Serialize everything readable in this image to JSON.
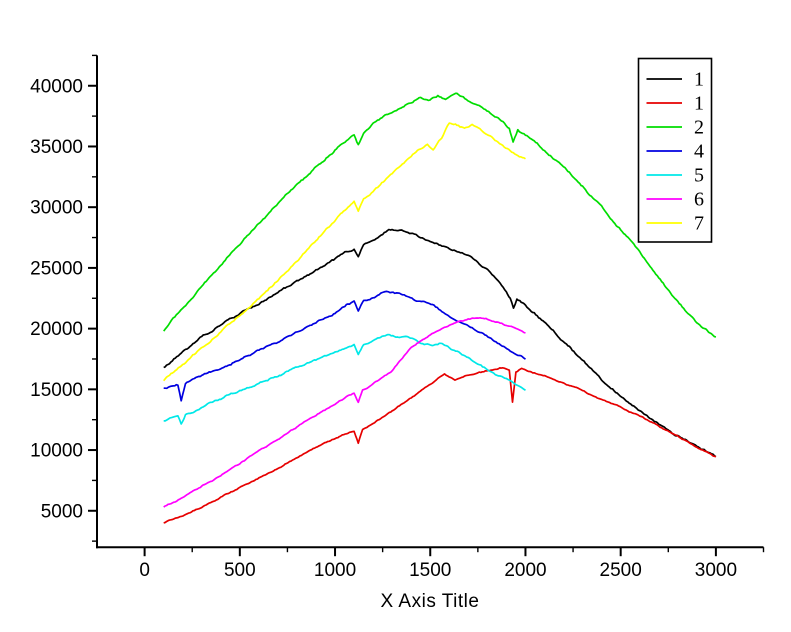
{
  "chart_data": {
    "type": "line",
    "title": "",
    "xlabel": "X Axis Title",
    "ylabel": "",
    "grid": false,
    "legend_position": "top-right",
    "xlim": [
      -250,
      3250
    ],
    "ylim": [
      2000,
      42500
    ],
    "x_ticks": [
      0,
      500,
      1000,
      1500,
      2000,
      2500,
      3000
    ],
    "y_ticks": [
      5000,
      10000,
      15000,
      20000,
      25000,
      30000,
      35000,
      40000
    ],
    "x_minor_step": 250,
    "y_minor_step": 2500,
    "axis_color": "#000000",
    "legend": {
      "labels": [
        "1",
        "1",
        "2",
        "4",
        "5",
        "6",
        "7"
      ],
      "border_color": "#000000",
      "background": "#ffffff"
    },
    "series": [
      {
        "name": "1",
        "color": "#000000",
        "noise": 150,
        "points": [
          [
            100,
            16800
          ],
          [
            200,
            18100
          ],
          [
            300,
            19300
          ],
          [
            400,
            20300
          ],
          [
            500,
            21300
          ],
          [
            600,
            22100
          ],
          [
            700,
            23000
          ],
          [
            800,
            23900
          ],
          [
            900,
            24800
          ],
          [
            1000,
            25700
          ],
          [
            1060,
            26300
          ],
          [
            1100,
            26600
          ],
          [
            1122,
            25900
          ],
          [
            1150,
            26800
          ],
          [
            1200,
            27300
          ],
          [
            1283,
            28200
          ],
          [
            1350,
            28100
          ],
          [
            1400,
            27900
          ],
          [
            1450,
            27500
          ],
          [
            1500,
            27200
          ],
          [
            1600,
            26500
          ],
          [
            1650,
            26300
          ],
          [
            1700,
            26000
          ],
          [
            1750,
            25500
          ],
          [
            1800,
            24900
          ],
          [
            1850,
            24000
          ],
          [
            1900,
            23000
          ],
          [
            1920,
            22500
          ],
          [
            1937,
            21700
          ],
          [
            1955,
            22400
          ],
          [
            2000,
            21900
          ],
          [
            2100,
            20500
          ],
          [
            2200,
            19000
          ],
          [
            2300,
            17400
          ],
          [
            2400,
            15800
          ],
          [
            2490,
            14560
          ],
          [
            2600,
            13200
          ],
          [
            2700,
            12200
          ],
          [
            2800,
            11200
          ],
          [
            2900,
            10300
          ],
          [
            3000,
            9450
          ]
        ]
      },
      {
        "name": "1",
        "color": "#e60000",
        "noise": 90,
        "points": [
          [
            100,
            4000
          ],
          [
            200,
            4600
          ],
          [
            300,
            5300
          ],
          [
            400,
            6100
          ],
          [
            500,
            6900
          ],
          [
            600,
            7700
          ],
          [
            700,
            8500
          ],
          [
            800,
            9400
          ],
          [
            900,
            10200
          ],
          [
            1000,
            11000
          ],
          [
            1060,
            11400
          ],
          [
            1100,
            11600
          ],
          [
            1122,
            10600
          ],
          [
            1145,
            11700
          ],
          [
            1200,
            12200
          ],
          [
            1300,
            13200
          ],
          [
            1400,
            14300
          ],
          [
            1480,
            15200
          ],
          [
            1540,
            15900
          ],
          [
            1575,
            16300
          ],
          [
            1600,
            16000
          ],
          [
            1630,
            15800
          ],
          [
            1680,
            16100
          ],
          [
            1750,
            16400
          ],
          [
            1820,
            16600
          ],
          [
            1880,
            16800
          ],
          [
            1915,
            16600
          ],
          [
            1932,
            14000
          ],
          [
            1950,
            16400
          ],
          [
            1980,
            16700
          ],
          [
            2000,
            16600
          ],
          [
            2100,
            16100
          ],
          [
            2200,
            15500
          ],
          [
            2300,
            14900
          ],
          [
            2400,
            14200
          ],
          [
            2490,
            13640
          ],
          [
            2600,
            12800
          ],
          [
            2700,
            12000
          ],
          [
            2800,
            11100
          ],
          [
            2900,
            10200
          ],
          [
            3000,
            9400
          ]
        ]
      },
      {
        "name": "2",
        "color": "#00dd00",
        "noise": 150,
        "points": [
          [
            100,
            19800
          ],
          [
            150,
            20800
          ],
          [
            200,
            21700
          ],
          [
            300,
            23500
          ],
          [
            400,
            25300
          ],
          [
            500,
            27000
          ],
          [
            600,
            28700
          ],
          [
            700,
            30300
          ],
          [
            800,
            31800
          ],
          [
            900,
            33300
          ],
          [
            1000,
            34700
          ],
          [
            1060,
            35500
          ],
          [
            1100,
            36000
          ],
          [
            1122,
            35200
          ],
          [
            1150,
            36200
          ],
          [
            1200,
            36900
          ],
          [
            1300,
            37900
          ],
          [
            1400,
            38600
          ],
          [
            1450,
            39000
          ],
          [
            1490,
            38700
          ],
          [
            1540,
            39200
          ],
          [
            1580,
            38900
          ],
          [
            1640,
            39300
          ],
          [
            1690,
            38900
          ],
          [
            1740,
            38500
          ],
          [
            1790,
            38100
          ],
          [
            1840,
            37500
          ],
          [
            1890,
            36900
          ],
          [
            1915,
            36500
          ],
          [
            1935,
            35300
          ],
          [
            1960,
            36300
          ],
          [
            2000,
            35900
          ],
          [
            2100,
            34700
          ],
          [
            2200,
            33300
          ],
          [
            2300,
            31700
          ],
          [
            2400,
            30000
          ],
          [
            2500,
            28200
          ],
          [
            2600,
            26300
          ],
          [
            2700,
            24200
          ],
          [
            2800,
            22200
          ],
          [
            2900,
            20500
          ],
          [
            3000,
            19300
          ]
        ]
      },
      {
        "name": "4",
        "color": "#0000e0",
        "noise": 140,
        "points": [
          [
            100,
            15100
          ],
          [
            150,
            15300
          ],
          [
            175,
            15400
          ],
          [
            192,
            14100
          ],
          [
            215,
            15500
          ],
          [
            300,
            16100
          ],
          [
            400,
            16800
          ],
          [
            500,
            17500
          ],
          [
            600,
            18200
          ],
          [
            700,
            18900
          ],
          [
            800,
            19700
          ],
          [
            900,
            20500
          ],
          [
            1000,
            21300
          ],
          [
            1060,
            22000
          ],
          [
            1100,
            22200
          ],
          [
            1122,
            21400
          ],
          [
            1150,
            22300
          ],
          [
            1200,
            22600
          ],
          [
            1272,
            23100
          ],
          [
            1330,
            22900
          ],
          [
            1380,
            22700
          ],
          [
            1420,
            22400
          ],
          [
            1470,
            22200
          ],
          [
            1520,
            21900
          ],
          [
            1570,
            21300
          ],
          [
            1620,
            20800
          ],
          [
            1670,
            20400
          ],
          [
            1720,
            20100
          ],
          [
            1770,
            19600
          ],
          [
            1820,
            19100
          ],
          [
            1870,
            18600
          ],
          [
            1920,
            18100
          ],
          [
            1960,
            17800
          ],
          [
            2000,
            17500
          ]
        ]
      },
      {
        "name": "5",
        "color": "#00e8e8",
        "noise": 130,
        "points": [
          [
            100,
            12400
          ],
          [
            150,
            12700
          ],
          [
            175,
            12800
          ],
          [
            192,
            12100
          ],
          [
            215,
            12900
          ],
          [
            300,
            13500
          ],
          [
            400,
            14200
          ],
          [
            500,
            14900
          ],
          [
            600,
            15500
          ],
          [
            700,
            16100
          ],
          [
            800,
            16800
          ],
          [
            900,
            17400
          ],
          [
            1000,
            18000
          ],
          [
            1060,
            18400
          ],
          [
            1100,
            18600
          ],
          [
            1122,
            17900
          ],
          [
            1150,
            18700
          ],
          [
            1200,
            19000
          ],
          [
            1270,
            19500
          ],
          [
            1320,
            19300
          ],
          [
            1370,
            19400
          ],
          [
            1420,
            19100
          ],
          [
            1460,
            18800
          ],
          [
            1510,
            18600
          ],
          [
            1555,
            18800
          ],
          [
            1600,
            18400
          ],
          [
            1650,
            18000
          ],
          [
            1700,
            17600
          ],
          [
            1750,
            17100
          ],
          [
            1800,
            16600
          ],
          [
            1850,
            16200
          ],
          [
            1900,
            15800
          ],
          [
            1950,
            15400
          ],
          [
            2000,
            15000
          ]
        ]
      },
      {
        "name": "6",
        "color": "#ff00ff",
        "noise": 90,
        "points": [
          [
            100,
            5300
          ],
          [
            200,
            6100
          ],
          [
            300,
            7000
          ],
          [
            400,
            7900
          ],
          [
            500,
            8900
          ],
          [
            600,
            9900
          ],
          [
            700,
            10900
          ],
          [
            800,
            11900
          ],
          [
            900,
            12900
          ],
          [
            1000,
            13800
          ],
          [
            1060,
            14400
          ],
          [
            1100,
            14700
          ],
          [
            1122,
            13900
          ],
          [
            1145,
            14900
          ],
          [
            1200,
            15400
          ],
          [
            1300,
            16500
          ],
          [
            1400,
            18500
          ],
          [
            1500,
            19500
          ],
          [
            1550,
            19900
          ],
          [
            1600,
            20300
          ],
          [
            1650,
            20600
          ],
          [
            1700,
            20800
          ],
          [
            1754,
            20900
          ],
          [
            1800,
            20800
          ],
          [
            1850,
            20600
          ],
          [
            1900,
            20300
          ],
          [
            1950,
            20000
          ],
          [
            2000,
            19600
          ]
        ]
      },
      {
        "name": "7",
        "color": "#ffff00",
        "noise": 150,
        "points": [
          [
            100,
            15700
          ],
          [
            200,
            17050
          ],
          [
            300,
            18400
          ],
          [
            400,
            19750
          ],
          [
            500,
            21100
          ],
          [
            600,
            22450
          ],
          [
            700,
            24000
          ],
          [
            800,
            25600
          ],
          [
            900,
            27300
          ],
          [
            1000,
            29000
          ],
          [
            1060,
            29900
          ],
          [
            1100,
            30400
          ],
          [
            1122,
            29700
          ],
          [
            1150,
            30600
          ],
          [
            1200,
            31300
          ],
          [
            1300,
            32800
          ],
          [
            1400,
            34200
          ],
          [
            1450,
            34800
          ],
          [
            1485,
            35100
          ],
          [
            1515,
            34800
          ],
          [
            1560,
            35800
          ],
          [
            1600,
            37000
          ],
          [
            1640,
            36800
          ],
          [
            1680,
            36500
          ],
          [
            1720,
            36800
          ],
          [
            1760,
            36500
          ],
          [
            1800,
            36100
          ],
          [
            1840,
            35600
          ],
          [
            1880,
            35100
          ],
          [
            1920,
            34700
          ],
          [
            1960,
            34300
          ],
          [
            2000,
            34000
          ]
        ]
      }
    ]
  }
}
